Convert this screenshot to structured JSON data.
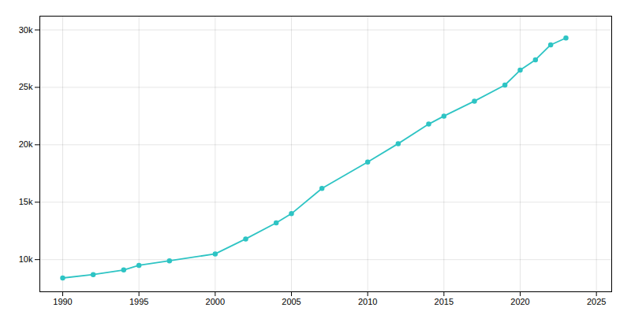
{
  "chart_data": {
    "type": "line",
    "x": [
      1990,
      1992,
      1994,
      1995,
      1997,
      2000,
      2002,
      2004,
      2005,
      2007,
      2010,
      2012,
      2014,
      2015,
      2017,
      2019,
      2020,
      2021,
      2022,
      2023
    ],
    "values": [
      8400,
      8700,
      9100,
      9500,
      9900,
      10500,
      11800,
      13200,
      14000,
      16200,
      18500,
      20100,
      21800,
      22500,
      23800,
      25200,
      26500,
      27400,
      28700,
      29300
    ],
    "color": "#2EC4C4",
    "marker": "circle",
    "xlim": [
      1988.5,
      2026
    ],
    "ylim": [
      7200,
      31200
    ],
    "xticks": [
      1990,
      1995,
      2000,
      2005,
      2010,
      2015,
      2020,
      2025
    ],
    "yticks": [
      {
        "value": 10000,
        "label": "10k"
      },
      {
        "value": 15000,
        "label": "15k"
      },
      {
        "value": 20000,
        "label": "20k"
      },
      {
        "value": 25000,
        "label": "25k"
      },
      {
        "value": 30000,
        "label": "30k"
      }
    ],
    "grid": true
  }
}
